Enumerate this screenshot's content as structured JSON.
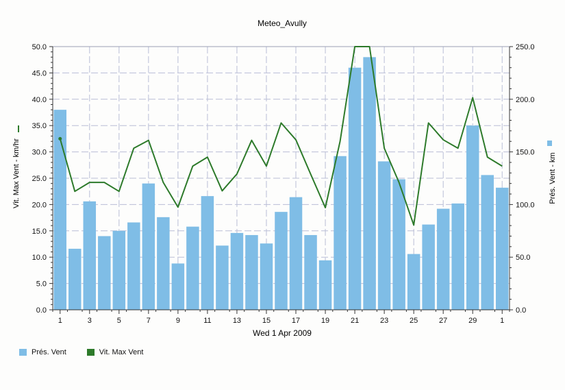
{
  "colors": {
    "bar": "#7fbde6",
    "line": "#2d7a2a",
    "grid": "#b9bdd6",
    "axis": "#333333"
  },
  "chart_data": {
    "type": "bar",
    "title": "Meteo_Avully",
    "xlabel": "Wed 1 Apr 2009",
    "ylabel_left": "Vit. Max Vent - km/hr",
    "ylabel_right": "Prés. Vent - km",
    "ylim_left": [
      0,
      50
    ],
    "ylim_right": [
      0,
      250
    ],
    "yticks_left": [
      "0.0",
      "5.0",
      "10.0",
      "15.0",
      "20.0",
      "25.0",
      "30.0",
      "35.0",
      "40.0",
      "45.0",
      "50.0"
    ],
    "yticks_right": [
      "0.0",
      "50.0",
      "100.0",
      "150.0",
      "200.0",
      "250.0"
    ],
    "x_tick_labels": [
      "1",
      "3",
      "5",
      "7",
      "9",
      "11",
      "13",
      "15",
      "17",
      "19",
      "21",
      "23",
      "25",
      "27",
      "29",
      "1"
    ],
    "grid": true,
    "legend_position": "bottom-left",
    "categories": [
      "1",
      "2",
      "3",
      "4",
      "5",
      "6",
      "7",
      "8",
      "9",
      "10",
      "11",
      "12",
      "13",
      "14",
      "15",
      "16",
      "17",
      "18",
      "19",
      "20",
      "21",
      "22",
      "23",
      "24",
      "25",
      "26",
      "27",
      "28",
      "29",
      "30",
      "1"
    ],
    "series": [
      {
        "name": "Prés. Vent",
        "type": "bar",
        "axis": "right",
        "values": [
          190,
          58,
          103,
          70,
          75,
          83,
          120,
          88,
          44,
          79,
          108,
          61,
          73,
          71,
          63,
          93,
          107,
          71,
          47,
          146,
          230,
          240,
          141,
          124,
          53,
          81,
          96,
          101,
          175,
          128,
          116
        ]
      },
      {
        "name": "Vit. Max Vent",
        "type": "line",
        "axis": "left",
        "values": [
          32.5,
          22.5,
          24.2,
          24.2,
          22.5,
          30.7,
          32.2,
          24.2,
          19.5,
          27.3,
          29.0,
          22.6,
          25.8,
          32.2,
          27.3,
          35.5,
          32.3,
          25.8,
          19.4,
          32.0,
          50.0,
          50.0,
          30.7,
          24.2,
          16.1,
          35.5,
          32.3,
          30.7,
          40.3,
          29.0,
          27.3
        ]
      }
    ]
  },
  "legend": [
    {
      "label": "Prés. Vent",
      "color": "#7fbde6"
    },
    {
      "label": "Vit. Max Vent",
      "color": "#2d7a2a"
    }
  ]
}
